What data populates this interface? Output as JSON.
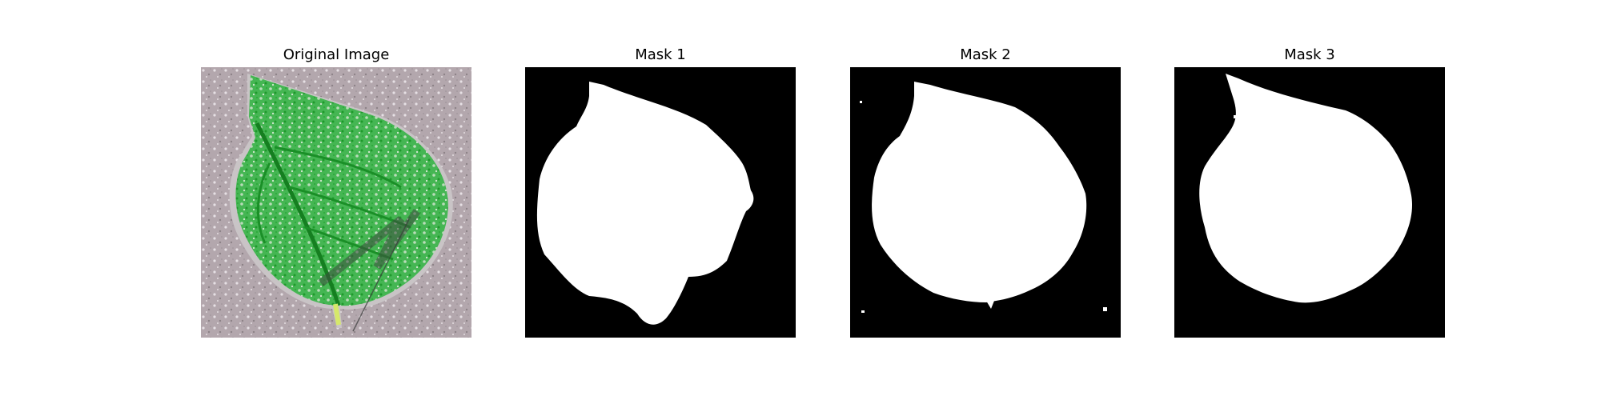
{
  "panels": [
    {
      "title": "Original Image"
    },
    {
      "title": "Mask 1"
    },
    {
      "title": "Mask 2"
    },
    {
      "title": "Mask 3"
    }
  ],
  "colors": {
    "background": "#ffffff",
    "mask_background": "#000000",
    "mask_foreground": "#ffffff",
    "leaf_green": "#3dbb4a",
    "leaf_dark_green": "#168a22",
    "surface_gray": "#b4a9ae"
  }
}
